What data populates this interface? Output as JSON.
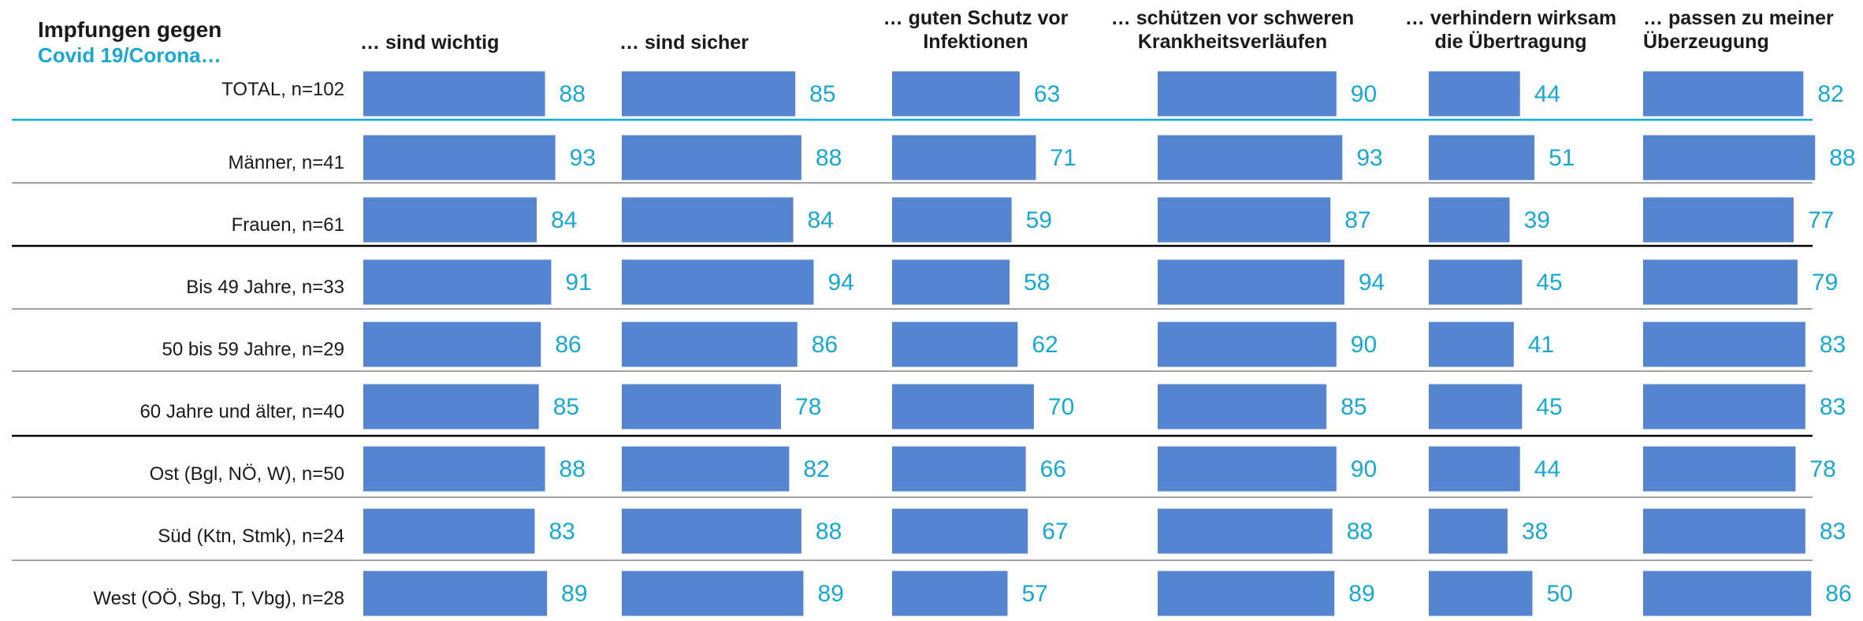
{
  "title": {
    "line1": "Impfungen gegen",
    "line2": "Covid 19/Corona…"
  },
  "colors": {
    "bar": "#5585d1",
    "value": "#19a8d4",
    "accent_line": "#19a8d4",
    "text": "#1a1a1a"
  },
  "chart_data": {
    "type": "bar",
    "orientation": "horizontal",
    "title": "Impfungen gegen Covid 19/Corona…",
    "categories": [
      "TOTAL, n=102",
      "Männer, n=41",
      "Frauen, n=61",
      "Bis 49 Jahre, n=33",
      "50 bis 59 Jahre, n=29",
      "60 Jahre und älter, n=40",
      "Ost (Bgl, NÖ, W), n=50",
      "Süd (Ktn, Stmk), n=24",
      "West (OÖ, Sbg, T, Vbg), n=28"
    ],
    "series": [
      {
        "name": "… sind wichtig",
        "values": [
          88,
          93,
          84,
          91,
          86,
          85,
          88,
          83,
          89
        ]
      },
      {
        "name": "… sind sicher",
        "values": [
          85,
          88,
          84,
          94,
          86,
          78,
          82,
          88,
          89
        ]
      },
      {
        "name": "… guten Schutz vor Infektionen",
        "values": [
          63,
          71,
          59,
          58,
          62,
          70,
          66,
          67,
          57
        ]
      },
      {
        "name": "… schützen vor schweren Krankheitsverläufen",
        "values": [
          90,
          93,
          87,
          94,
          90,
          85,
          90,
          88,
          89
        ]
      },
      {
        "name": "… verhindern wirksam die Übertragung",
        "values": [
          44,
          51,
          39,
          45,
          41,
          45,
          44,
          38,
          50
        ]
      },
      {
        "name": "… passen zu meiner Überzeugung",
        "values": [
          82,
          88,
          77,
          79,
          83,
          83,
          78,
          83,
          86
        ]
      }
    ],
    "column_headers": [
      [
        "… sind wichtig"
      ],
      [
        "… sind sicher"
      ],
      [
        "… guten Schutz vor",
        "Infektionen"
      ],
      [
        "… schützen vor schweren",
        "Krankheitsverläufen"
      ],
      [
        "… verhindern wirksam",
        "die Übertragung"
      ],
      [
        "… passen zu meiner",
        "Überzeugung"
      ]
    ],
    "xlim": [
      0,
      100
    ],
    "grid": false,
    "legend": "none"
  }
}
